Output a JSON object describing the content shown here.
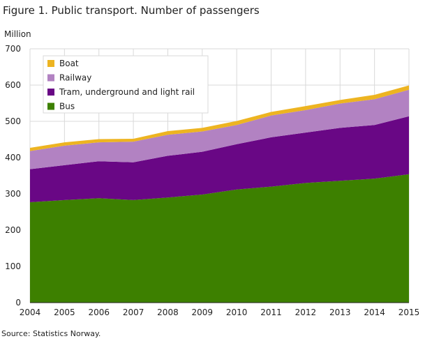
{
  "chart_data": {
    "type": "area",
    "stacked": true,
    "title": "Figure 1. Public transport. Number of passengers",
    "ylabel": "Million",
    "xlabel": "",
    "source": "Source: Statistics Norway.",
    "x": [
      "2004",
      "2005",
      "2006",
      "2007",
      "2008",
      "2009",
      "2010",
      "2011",
      "2012",
      "2013",
      "2014",
      "2015"
    ],
    "ylim": [
      0,
      700
    ],
    "yticks": [
      0,
      100,
      200,
      300,
      400,
      500,
      600,
      700
    ],
    "grid": true,
    "legend_position": "top-left",
    "series": [
      {
        "name": "Bus",
        "color": "#3d8000",
        "values": [
          277,
          283,
          288,
          283,
          290,
          298,
          312,
          320,
          330,
          336,
          342,
          354
        ]
      },
      {
        "name": "Tram, underground and light rail",
        "color": "#690785",
        "values": [
          91,
          96,
          102,
          104,
          115,
          118,
          125,
          136,
          139,
          146,
          148,
          160
        ]
      },
      {
        "name": "Railway",
        "color": "#b282c2",
        "values": [
          50,
          54,
          52,
          57,
          58,
          56,
          53,
          60,
          62,
          67,
          71,
          73
        ]
      },
      {
        "name": "Boat",
        "color": "#edb421",
        "values": [
          9,
          9,
          9,
          8,
          10,
          10,
          11,
          10,
          11,
          10,
          12,
          12
        ]
      }
    ]
  }
}
